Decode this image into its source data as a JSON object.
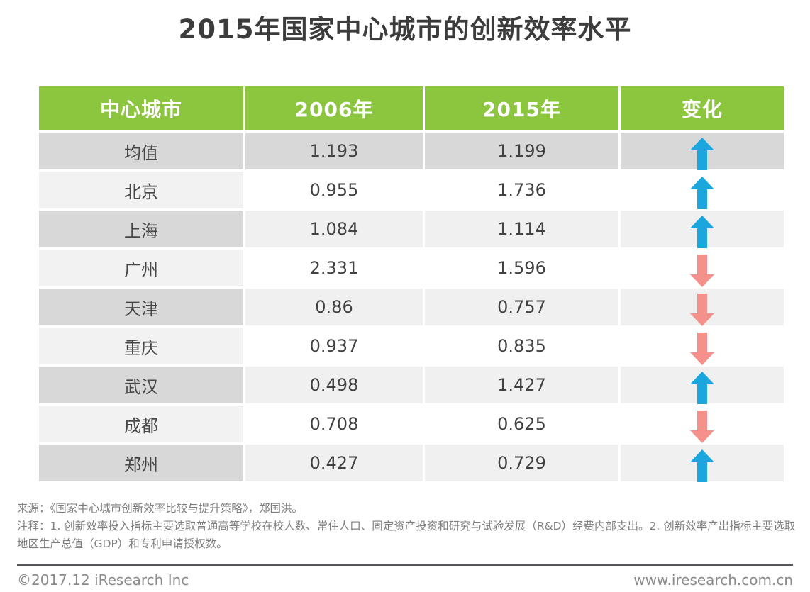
{
  "title": "2015年国家中心城市的创新效率水平",
  "table": {
    "headers": [
      "中心城市",
      "2006年",
      "2015年",
      "变化"
    ],
    "rows": [
      {
        "city": "均值",
        "y2006": "1.193",
        "y2015": "1.199",
        "change": "up",
        "shade": "dark"
      },
      {
        "city": "北京",
        "y2006": "0.955",
        "y2015": "1.736",
        "change": "up",
        "shade": "light"
      },
      {
        "city": "上海",
        "y2006": "1.084",
        "y2015": "1.114",
        "change": "up",
        "shade": "mid"
      },
      {
        "city": "广州",
        "y2006": "2.331",
        "y2015": "1.596",
        "change": "down",
        "shade": "light"
      },
      {
        "city": "天津",
        "y2006": "0.86",
        "y2015": "0.757",
        "change": "down",
        "shade": "mid"
      },
      {
        "city": "重庆",
        "y2006": "0.937",
        "y2015": "0.835",
        "change": "down",
        "shade": "light"
      },
      {
        "city": "武汉",
        "y2006": "0.498",
        "y2015": "1.427",
        "change": "up",
        "shade": "mid"
      },
      {
        "city": "成都",
        "y2006": "0.708",
        "y2015": "0.625",
        "change": "down",
        "shade": "light"
      },
      {
        "city": "郑州",
        "y2006": "0.427",
        "y2015": "0.729",
        "change": "up",
        "shade": "mid"
      }
    ]
  },
  "chart_data": {
    "type": "table",
    "title": "2015年国家中心城市的创新效率水平",
    "columns": [
      "中心城市",
      "2006年",
      "2015年",
      "变化"
    ],
    "rows": [
      [
        "均值",
        1.193,
        1.199,
        "up"
      ],
      [
        "北京",
        0.955,
        1.736,
        "up"
      ],
      [
        "上海",
        1.084,
        1.114,
        "up"
      ],
      [
        "广州",
        2.331,
        1.596,
        "down"
      ],
      [
        "天津",
        0.86,
        0.757,
        "down"
      ],
      [
        "重庆",
        0.937,
        0.835,
        "down"
      ],
      [
        "武汉",
        0.498,
        1.427,
        "up"
      ],
      [
        "成都",
        0.708,
        0.625,
        "down"
      ],
      [
        "郑州",
        0.427,
        0.729,
        "up"
      ]
    ]
  },
  "footer": {
    "source": "来源：《国家中心城市创新效率比较与提升策略》，郑国洪。",
    "note": "注释：1. 创新效率投入指标主要选取普通高等学校在校人数、常住人口、固定资产投资和研究与试验发展（R&D）经费内部支出。2. 创新效率产出指标主要选取地区生产总值（GDP）和专利申请授权数。",
    "copyright": "©2017.12 iResearch Inc",
    "website": "www.iresearch.com.cn"
  },
  "colors": {
    "header_green": "#8cc63f",
    "arrow_up_blue": "#1ba7de",
    "arrow_down_pink": "#f5918b",
    "row_dark": "#d8d8d8",
    "row_mid": "#f0f0f0",
    "row_light_first": "#f2f2f2",
    "row_white": "#ffffff",
    "title_text": "#3c3c3c",
    "footer_text": "#7e7e7e",
    "divider": "#55565a"
  }
}
